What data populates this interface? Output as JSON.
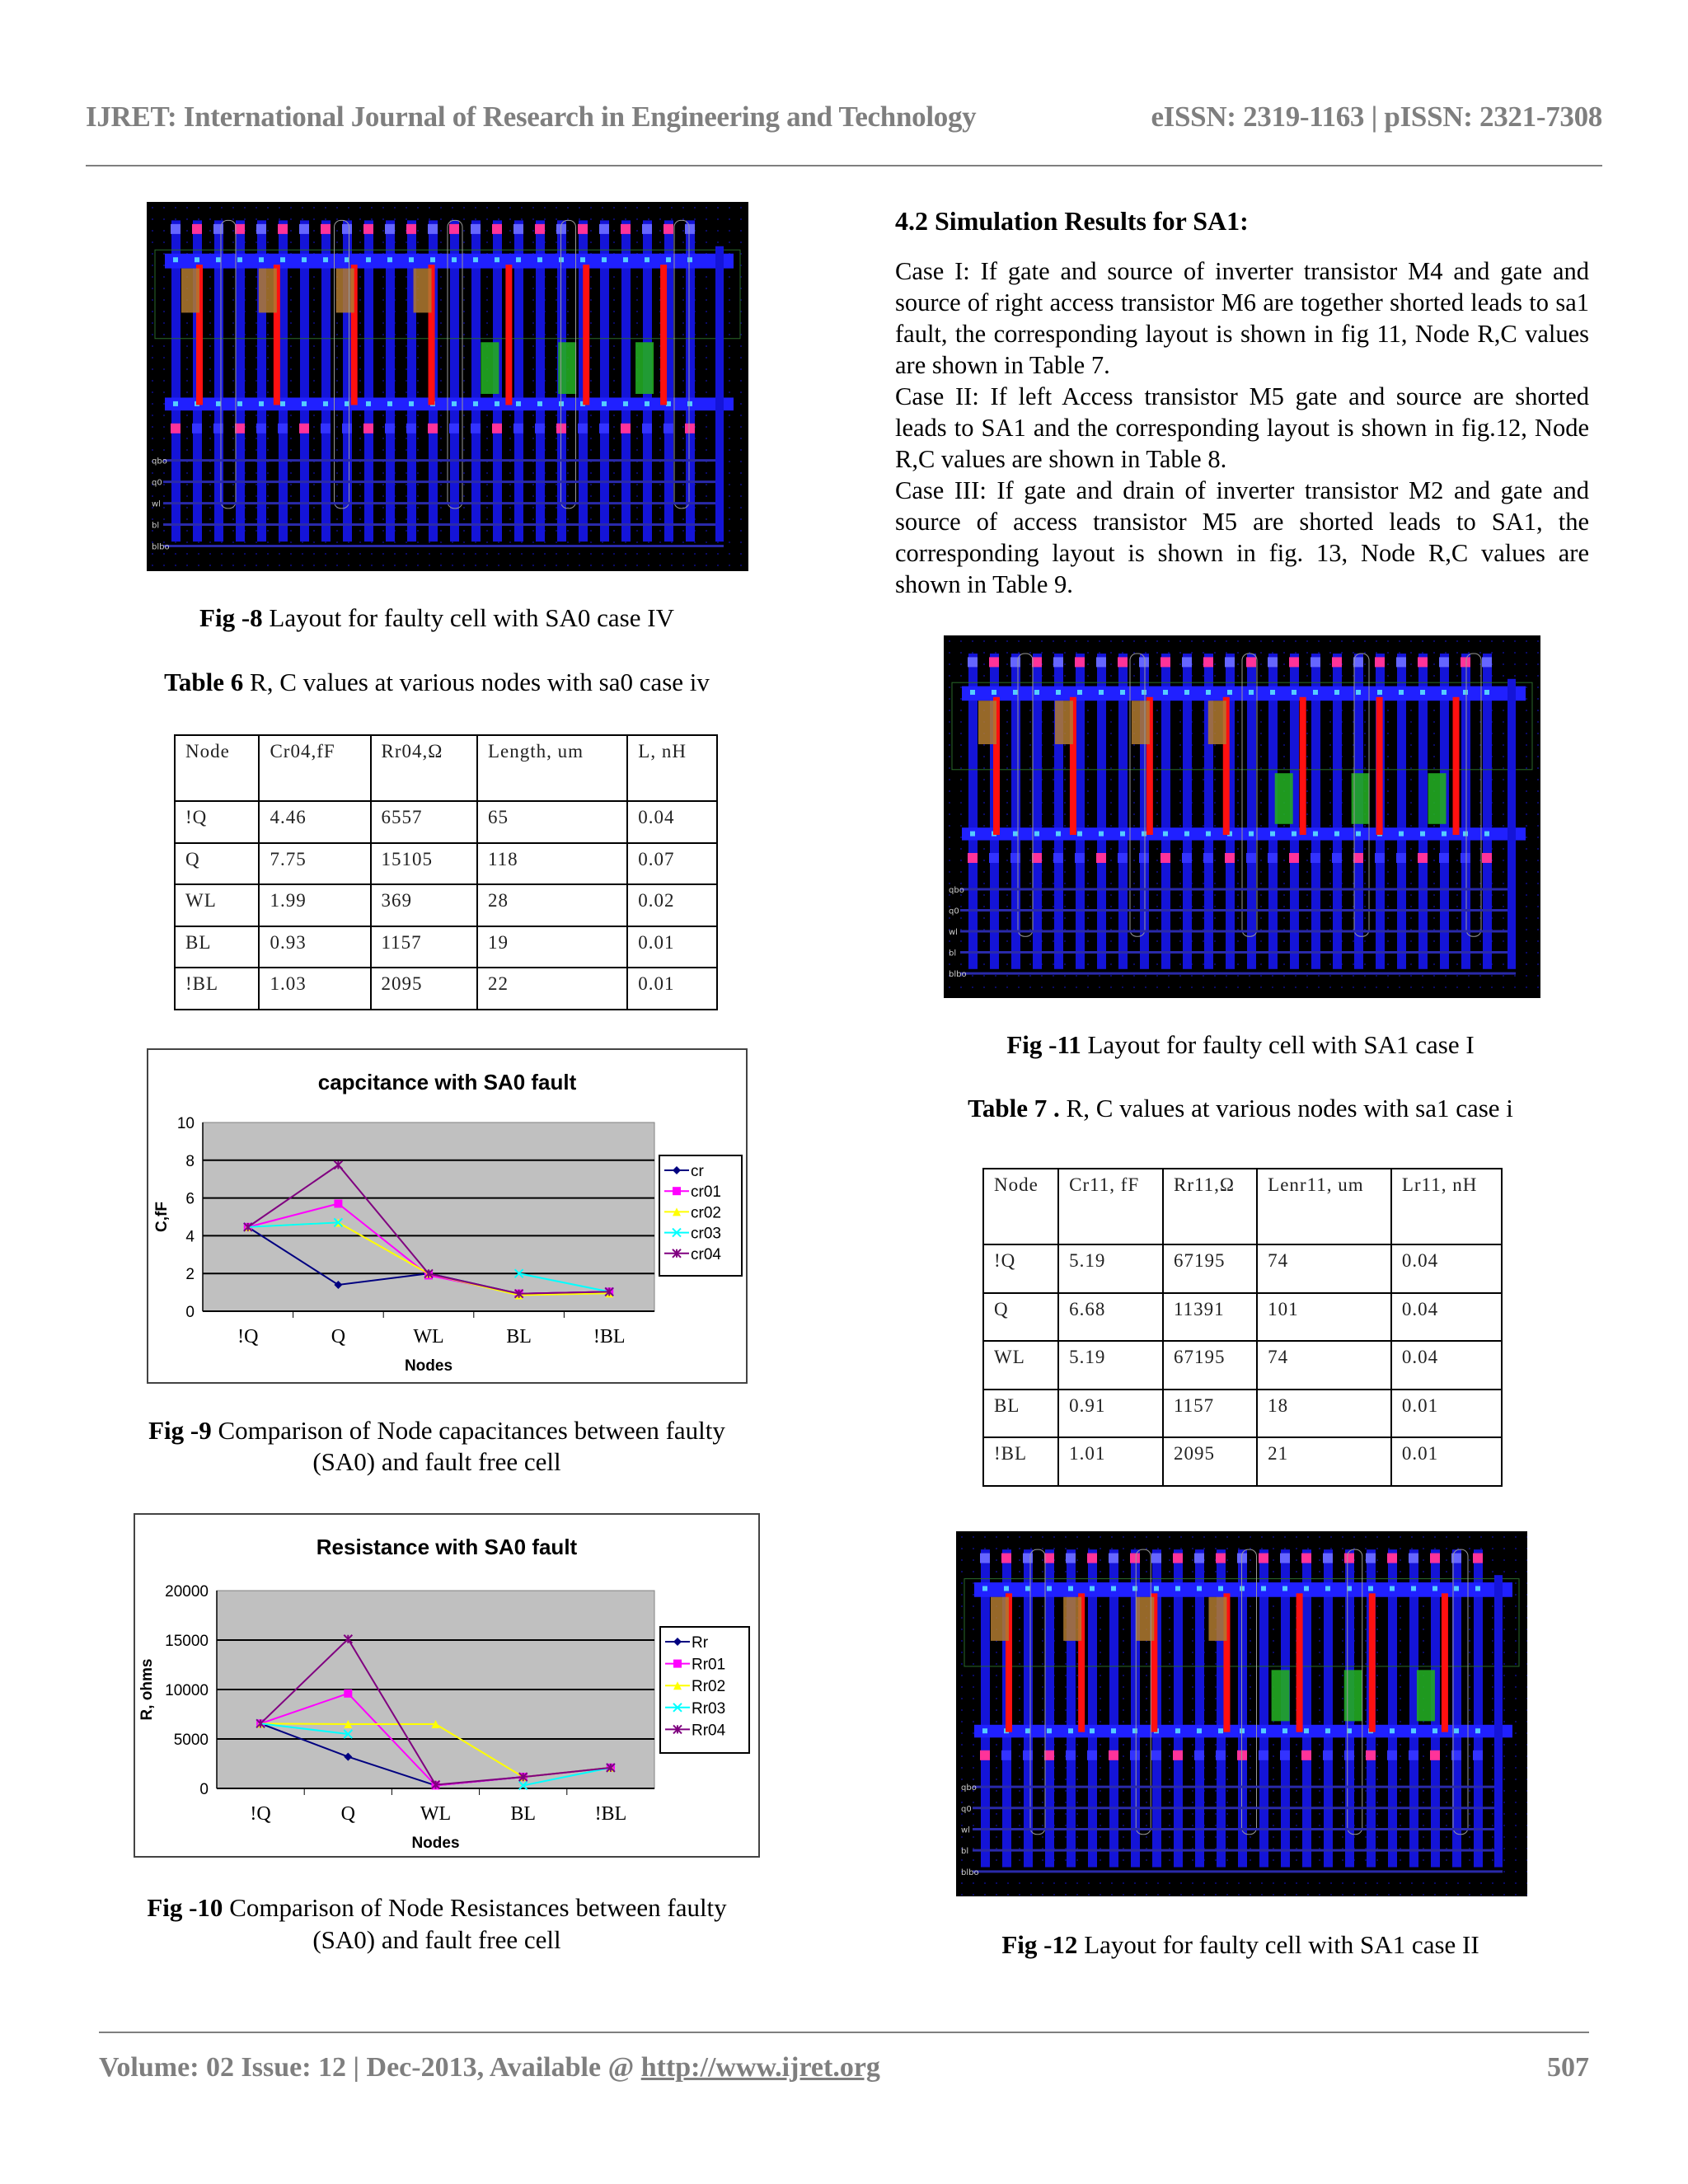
{
  "header": {
    "journal": "IJRET: International Journal of Research in Engineering and Technology",
    "issn": "eISSN: 2319-1163 | pISSN: 2321-7308"
  },
  "fig8": {
    "label": "Fig -8",
    "caption": " Layout for faulty cell with SA0 case IV"
  },
  "table6": {
    "label": "Table 6",
    "caption": " R, C values at various nodes with sa0 case iv",
    "headers": [
      "Node",
      "Cr04,fF",
      "Rr04,Ω",
      "Length, um",
      "L, nH"
    ],
    "rows": [
      [
        "!Q",
        "4.46",
        "6557",
        "65",
        "0.04"
      ],
      [
        "Q",
        "7.75",
        "15105",
        "118",
        "0.07"
      ],
      [
        "WL",
        "1.99",
        "369",
        "28",
        "0.02"
      ],
      [
        "BL",
        "0.93",
        "1157",
        "19",
        "0.01"
      ],
      [
        "!BL",
        "1.03",
        "2095",
        "22",
        "0.01"
      ]
    ]
  },
  "fig9": {
    "label": "Fig -9",
    "caption_line1": " Comparison of Node capacitances between faulty",
    "caption_line2": "(SA0) and fault free cell"
  },
  "fig10": {
    "label": "Fig -10",
    "caption_line1": " Comparison of Node Resistances between faulty",
    "caption_line2": "(SA0) and fault free cell"
  },
  "section": {
    "heading": "4.2 Simulation Results for SA1:",
    "paragraphs": [
      "Case I: If gate and source of inverter  transistor M4 and gate and source of right access transistor M6 are together shorted leads  to sa1 fault, the corresponding layout is shown in fig 11, Node R,C values are shown in Table 7.",
      "Case  II:  If  left  Access  transistor  M5  gate  and  source  are shorted leads to SA1 and the corresponding layout is shown in fig.12, Node R,C values are shown in Table 8.",
      "Case III: If gate and drain of inverter   transistor M2 and   gate and source of access transistor M5 are shorted leads to SA1, the corresponding layout is shown in fig. 13, Node R,C values are shown in Table 9."
    ]
  },
  "fig11": {
    "label": "Fig -11",
    "caption": " Layout for faulty cell with SA1 case I"
  },
  "table7": {
    "label": "Table 7 .",
    "caption": " R, C values at various nodes with sa1 case i",
    "headers": [
      "Node",
      "Cr11, fF",
      "Rr11,Ω",
      "Lenr11, um",
      "Lr11, nH"
    ],
    "rows": [
      [
        "!Q",
        "5.19",
        "67195",
        "74",
        "0.04"
      ],
      [
        "Q",
        "6.68",
        "11391",
        "101",
        "0.04"
      ],
      [
        "WL",
        "5.19",
        "67195",
        "74",
        "0.04"
      ],
      [
        "BL",
        "0.91",
        "1157",
        "18",
        "0.01"
      ],
      [
        "!BL",
        "1.01",
        "2095",
        "21",
        "0.01"
      ]
    ]
  },
  "fig12": {
    "label": "Fig -12",
    "caption": " Layout for faulty cell with SA1 case II"
  },
  "layout_labels": [
    "qbo",
    "q0",
    "wl",
    "bl",
    "blbo"
  ],
  "footer": {
    "volume": "Volume: 02 Issue: 12 | Dec-2013, Available @ ",
    "url": "http://www.ijret.org",
    "page": "507"
  },
  "colors": {
    "navy": "#000080",
    "magenta": "#ff00ff",
    "yellow": "#ffff00",
    "cyan": "#00ffff",
    "purple": "#800080",
    "plot_bg": "#c0c0c0"
  },
  "chart_data": [
    {
      "type": "line",
      "title": "capcitance with  SA0 fault",
      "xlabel": "Nodes",
      "ylabel": "C,fF",
      "categories": [
        "!Q",
        "Q",
        "WL",
        "BL",
        "!BL"
      ],
      "ylim": [
        0,
        10
      ],
      "yticks": [
        "0",
        "2",
        "4",
        "6",
        "8",
        "10"
      ],
      "ytick_values": [
        0,
        2,
        4,
        6,
        8,
        10
      ],
      "grid": true,
      "legend": "right",
      "series": [
        {
          "name": "cr",
          "values": [
            4.46,
            1.4,
            2.0,
            0.93,
            1.03
          ],
          "color": "#000080",
          "marker": "diamond"
        },
        {
          "name": "cr01",
          "values": [
            4.46,
            5.7,
            1.9,
            0.93,
            1.03
          ],
          "color": "#ff00ff",
          "marker": "square"
        },
        {
          "name": "cr02",
          "values": [
            4.46,
            4.7,
            1.99,
            0.85,
            0.95
          ],
          "color": "#ffff00",
          "marker": "triangle"
        },
        {
          "name": "cr03",
          "values": [
            4.46,
            4.7,
            null,
            2.0,
            1.03
          ],
          "color": "#00ffff",
          "marker": "x"
        },
        {
          "name": "cr04",
          "values": [
            4.46,
            7.75,
            1.99,
            0.93,
            1.03
          ],
          "color": "#800080",
          "marker": "star"
        }
      ]
    },
    {
      "type": "line",
      "title": "Resistance with SA0 fault",
      "xlabel": "Nodes",
      "ylabel": "R, ohms",
      "categories": [
        "!Q",
        "Q",
        "WL",
        "BL",
        "!BL"
      ],
      "ylim": [
        0,
        20000
      ],
      "yticks": [
        "0",
        "5000",
        "10000",
        "15000",
        "20000"
      ],
      "ytick_values": [
        0,
        5000,
        10000,
        15000,
        20000
      ],
      "grid": true,
      "legend": "right",
      "series": [
        {
          "name": "Rr",
          "values": [
            6557,
            3200,
            300,
            1157,
            2095
          ],
          "color": "#000080",
          "marker": "diamond"
        },
        {
          "name": "Rr01",
          "values": [
            6557,
            9600,
            300,
            1157,
            2095
          ],
          "color": "#ff00ff",
          "marker": "square"
        },
        {
          "name": "Rr02",
          "values": [
            6557,
            6500,
            6500,
            1157,
            2095
          ],
          "color": "#ffff00",
          "marker": "triangle"
        },
        {
          "name": "Rr03",
          "values": [
            6557,
            5500,
            null,
            300,
            2095
          ],
          "color": "#00ffff",
          "marker": "x"
        },
        {
          "name": "Rr04",
          "values": [
            6557,
            15105,
            369,
            1157,
            2095
          ],
          "color": "#800080",
          "marker": "star"
        }
      ]
    }
  ]
}
